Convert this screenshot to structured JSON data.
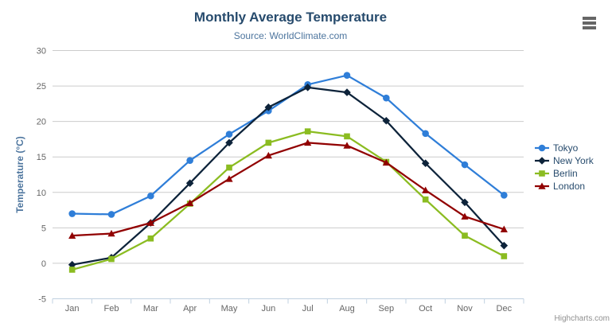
{
  "chart": {
    "title": "Monthly Average Temperature",
    "subtitle": "Source: WorldClimate.com",
    "credits": "Highcharts.com"
  },
  "icons": {
    "context_menu": "hamburger-menu-icon"
  },
  "chart_data": {
    "type": "line",
    "title": "Monthly Average Temperature",
    "subtitle": "Source: WorldClimate.com",
    "categories": [
      "Jan",
      "Feb",
      "Mar",
      "Apr",
      "May",
      "Jun",
      "Jul",
      "Aug",
      "Sep",
      "Oct",
      "Nov",
      "Dec"
    ],
    "series": [
      {
        "name": "Tokyo",
        "color": "#2f7ed8",
        "marker": "circle",
        "values": [
          7.0,
          6.9,
          9.5,
          14.5,
          18.2,
          21.5,
          25.2,
          26.5,
          23.3,
          18.3,
          13.9,
          9.6
        ]
      },
      {
        "name": "New York",
        "color": "#0d233a",
        "marker": "diamond",
        "values": [
          -0.2,
          0.8,
          5.7,
          11.3,
          17.0,
          22.0,
          24.8,
          24.1,
          20.1,
          14.1,
          8.6,
          2.5
        ]
      },
      {
        "name": "Berlin",
        "color": "#8bbc21",
        "marker": "square",
        "values": [
          -0.9,
          0.6,
          3.5,
          8.4,
          13.5,
          17.0,
          18.6,
          17.9,
          14.3,
          9.0,
          3.9,
          1.0
        ]
      },
      {
        "name": "London",
        "color": "#910000",
        "marker": "triangle",
        "values": [
          3.9,
          4.2,
          5.7,
          8.5,
          11.9,
          15.2,
          17.0,
          16.6,
          14.2,
          10.3,
          6.6,
          4.8
        ]
      }
    ],
    "xlabel": "",
    "ylabel": "Temperature (°C)",
    "ylim": [
      -5,
      30
    ],
    "yticks": [
      -5,
      0,
      5,
      10,
      15,
      20,
      25,
      30
    ],
    "grid": true,
    "legend_position": "right",
    "colors": {
      "grid_line": "#cccccc",
      "axis_line": "#c0d0e0",
      "axis_label": "#666666",
      "axis_title": "#4d759e",
      "title_text": "#274b6d",
      "legend_text": "#274b6d"
    }
  }
}
